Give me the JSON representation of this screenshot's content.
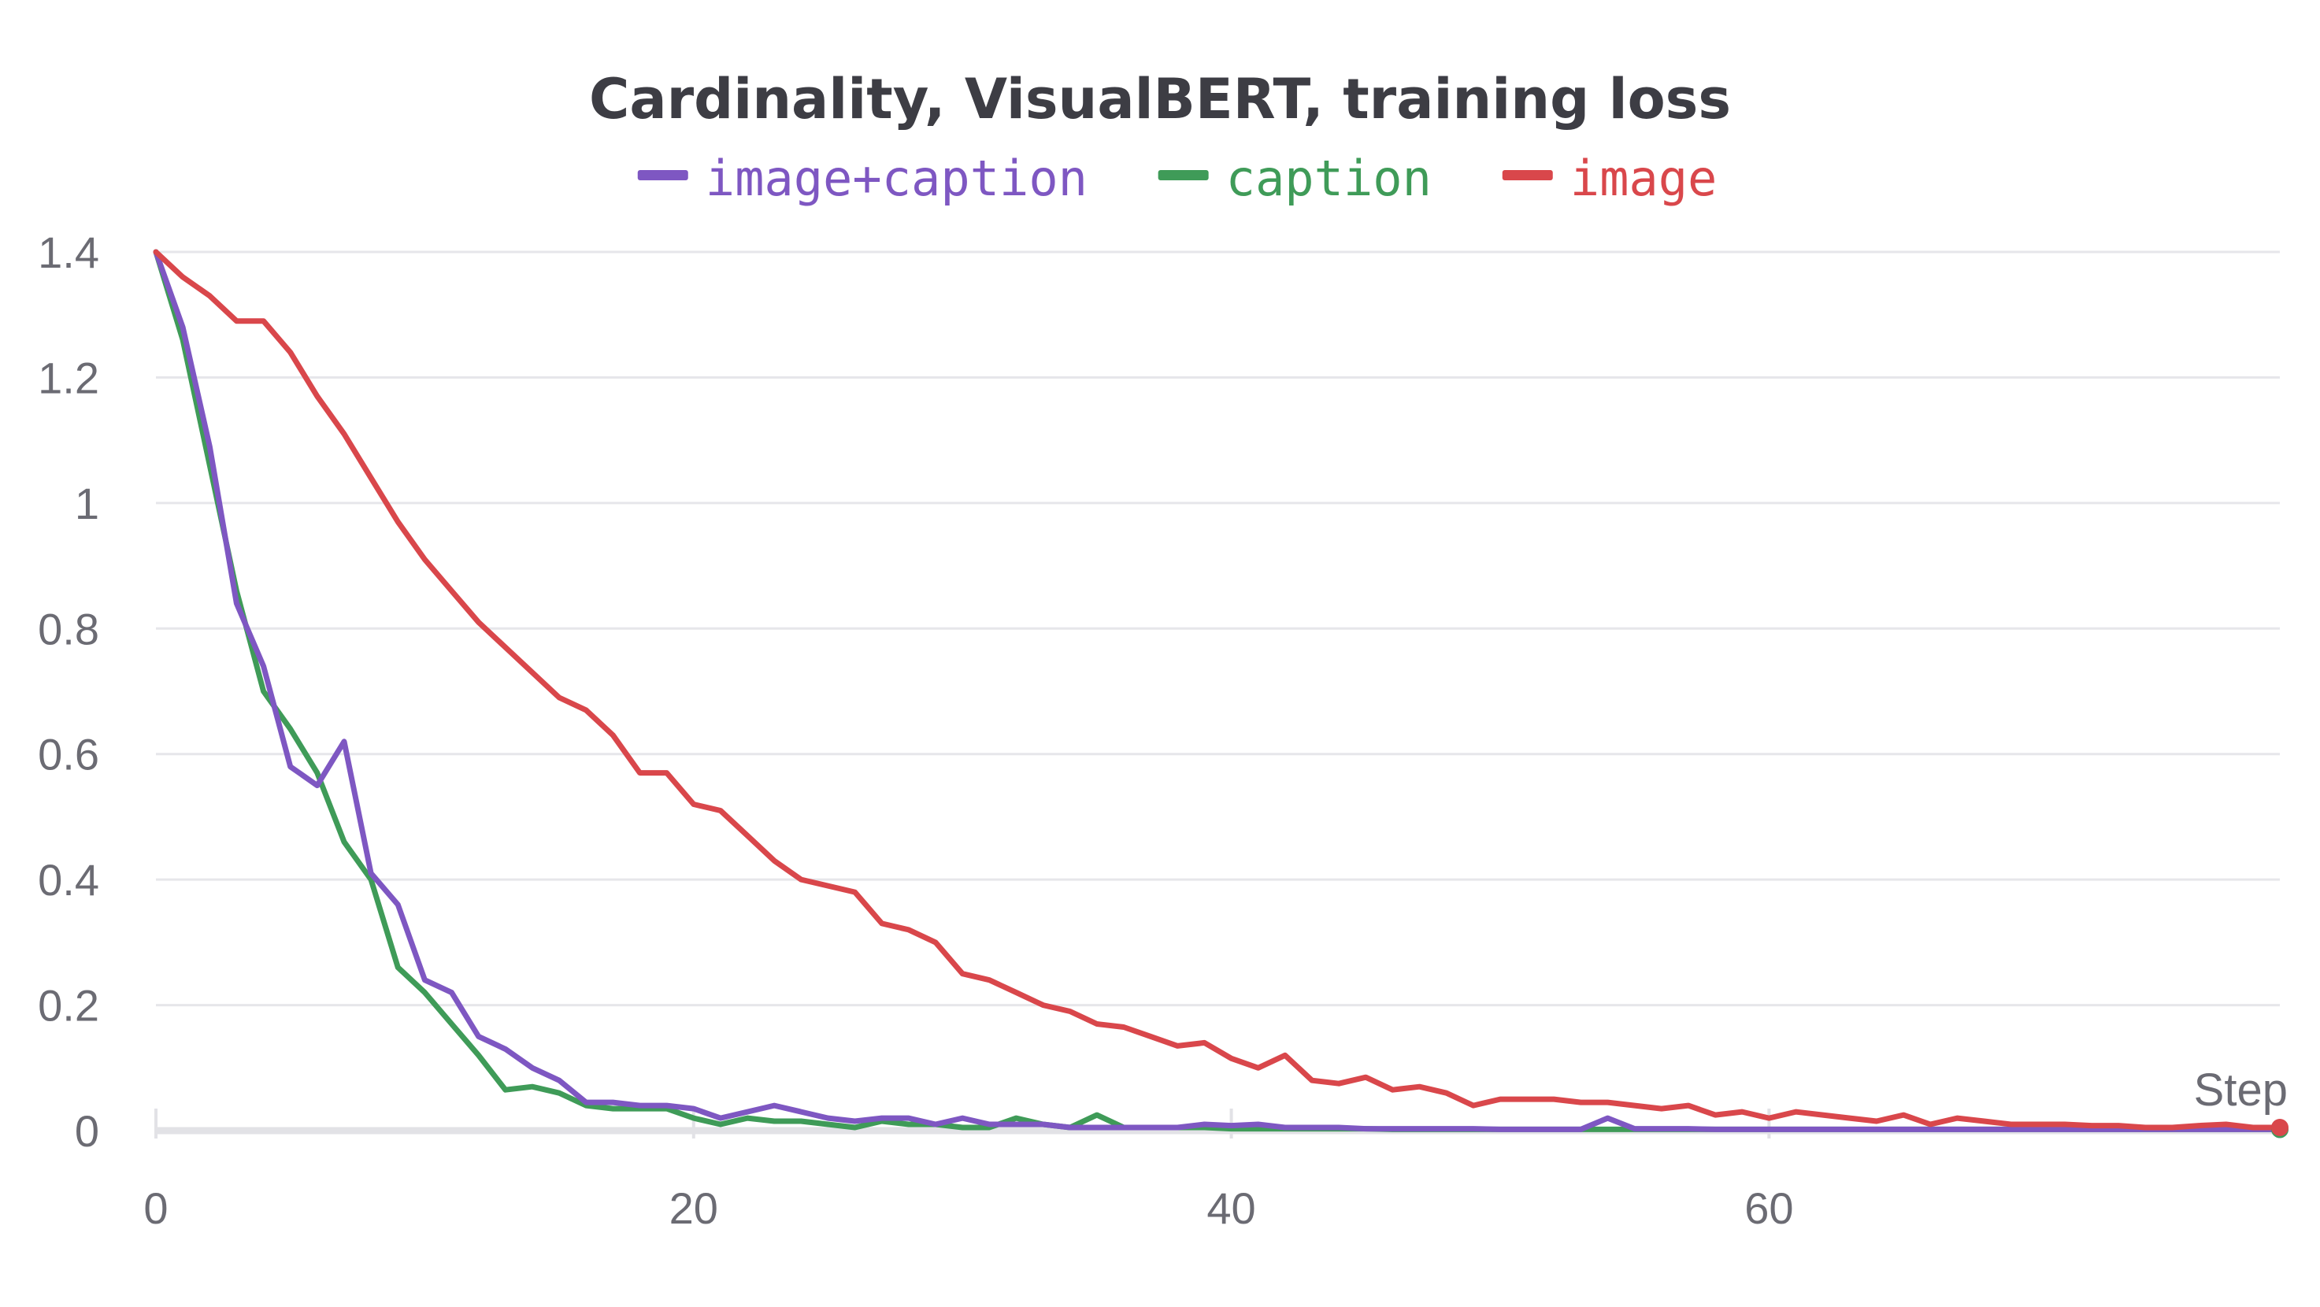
{
  "chart_data": {
    "type": "line",
    "title": "Cardinality, VisualBERT, training loss",
    "xlabel": "Step",
    "ylabel": "",
    "xlim": [
      0,
      79
    ],
    "ylim": [
      0,
      1.4
    ],
    "xticks": [
      0,
      20,
      40,
      60
    ],
    "yticks": [
      0,
      0.2,
      0.4,
      0.6,
      0.8,
      1,
      1.2,
      1.4
    ],
    "xtick_labels": [
      "0",
      "20",
      "40",
      "60"
    ],
    "ytick_labels": [
      "0",
      "0.2",
      "0.4",
      "0.6",
      "0.8",
      "1",
      "1.2",
      "1.4"
    ],
    "legend_position": "top-center",
    "series": [
      {
        "name": "image+caption",
        "color": "#7e57c2",
        "x": [
          0,
          1,
          2,
          3,
          4,
          5,
          6,
          7,
          8,
          9,
          10,
          11,
          12,
          13,
          14,
          15,
          16,
          17,
          18,
          19,
          20,
          21,
          22,
          23,
          24,
          25,
          26,
          27,
          28,
          29,
          30,
          31,
          32,
          33,
          34,
          35,
          36,
          37,
          38,
          39,
          40,
          41,
          42,
          43,
          44,
          45,
          46,
          47,
          48,
          49,
          50,
          51,
          52,
          53,
          54,
          55,
          56,
          57,
          58,
          59,
          60,
          61,
          62,
          63,
          64,
          65,
          66,
          67,
          68,
          69,
          70,
          71,
          72,
          73,
          74,
          75,
          76,
          77,
          78,
          79
        ],
        "values": [
          1.4,
          1.28,
          1.09,
          0.84,
          0.74,
          0.58,
          0.55,
          0.62,
          0.41,
          0.36,
          0.24,
          0.22,
          0.15,
          0.13,
          0.1,
          0.08,
          0.045,
          0.045,
          0.04,
          0.04,
          0.035,
          0.02,
          0.03,
          0.04,
          0.03,
          0.02,
          0.015,
          0.02,
          0.02,
          0.01,
          0.02,
          0.01,
          0.01,
          0.01,
          0.005,
          0.005,
          0.005,
          0.005,
          0.005,
          0.01,
          0.008,
          0.01,
          0.005,
          0.005,
          0.005,
          0.003,
          0.003,
          0.003,
          0.003,
          0.003,
          0.002,
          0.002,
          0.002,
          0.002,
          0.02,
          0.003,
          0.003,
          0.003,
          0.002,
          0.002,
          0.002,
          0.002,
          0.002,
          0.002,
          0.002,
          0.002,
          0.002,
          0.002,
          0.002,
          0.002,
          0.002,
          0.002,
          0.002,
          0.002,
          0.002,
          0.002,
          0.002,
          0.002,
          0.002,
          0.002
        ]
      },
      {
        "name": "caption",
        "color": "#3f9b58",
        "x": [
          0,
          1,
          2,
          3,
          4,
          5,
          6,
          7,
          8,
          9,
          10,
          11,
          12,
          13,
          14,
          15,
          16,
          17,
          18,
          19,
          20,
          21,
          22,
          23,
          24,
          25,
          26,
          27,
          28,
          29,
          30,
          31,
          32,
          33,
          34,
          35,
          36,
          37,
          38,
          39,
          40,
          41,
          42,
          43,
          44,
          45,
          46,
          47,
          48,
          49,
          50,
          51,
          52,
          53,
          54,
          55,
          56,
          57,
          58,
          59,
          60,
          61,
          62,
          63,
          64,
          65,
          66,
          67,
          68,
          69,
          70,
          71,
          72,
          73,
          74,
          75,
          76,
          77,
          78,
          79
        ],
        "values": [
          1.4,
          1.26,
          1.06,
          0.86,
          0.7,
          0.64,
          0.57,
          0.46,
          0.4,
          0.26,
          0.22,
          0.17,
          0.12,
          0.065,
          0.07,
          0.06,
          0.04,
          0.035,
          0.035,
          0.035,
          0.02,
          0.01,
          0.02,
          0.015,
          0.015,
          0.01,
          0.005,
          0.015,
          0.01,
          0.01,
          0.005,
          0.005,
          0.02,
          0.01,
          0.005,
          0.025,
          0.005,
          0.005,
          0.005,
          0.005,
          0.003,
          0.003,
          0.003,
          0.003,
          0.003,
          0.003,
          0.002,
          0.002,
          0.002,
          0.002,
          0.002,
          0.002,
          0.002,
          0.002,
          0.002,
          0.002,
          0.002,
          0.002,
          0.002,
          0.002,
          0.002,
          0.002,
          0.002,
          0.002,
          0.002,
          0.002,
          0.002,
          0.002,
          0.002,
          0.002,
          0.002,
          0.002,
          0.002,
          0.002,
          0.002,
          0.002,
          0.002,
          0.002,
          0.002,
          0.002
        ]
      },
      {
        "name": "image",
        "color": "#d9474b",
        "x": [
          0,
          1,
          2,
          3,
          4,
          5,
          6,
          7,
          8,
          9,
          10,
          11,
          12,
          13,
          14,
          15,
          16,
          17,
          18,
          19,
          20,
          21,
          22,
          23,
          24,
          25,
          26,
          27,
          28,
          29,
          30,
          31,
          32,
          33,
          34,
          35,
          36,
          37,
          38,
          39,
          40,
          41,
          42,
          43,
          44,
          45,
          46,
          47,
          48,
          49,
          50,
          51,
          52,
          53,
          54,
          55,
          56,
          57,
          58,
          59,
          60,
          61,
          62,
          63,
          64,
          65,
          66,
          67,
          68,
          69,
          70,
          71,
          72,
          73,
          74,
          75,
          76,
          77,
          78,
          79
        ],
        "values": [
          1.4,
          1.36,
          1.33,
          1.29,
          1.29,
          1.24,
          1.17,
          1.11,
          1.04,
          0.97,
          0.91,
          0.86,
          0.81,
          0.77,
          0.73,
          0.69,
          0.67,
          0.63,
          0.57,
          0.57,
          0.52,
          0.51,
          0.47,
          0.43,
          0.4,
          0.39,
          0.38,
          0.33,
          0.32,
          0.3,
          0.25,
          0.24,
          0.22,
          0.2,
          0.19,
          0.17,
          0.165,
          0.15,
          0.135,
          0.14,
          0.115,
          0.1,
          0.12,
          0.08,
          0.075,
          0.085,
          0.065,
          0.07,
          0.06,
          0.04,
          0.05,
          0.05,
          0.05,
          0.045,
          0.045,
          0.04,
          0.035,
          0.04,
          0.025,
          0.03,
          0.02,
          0.03,
          0.025,
          0.02,
          0.015,
          0.025,
          0.01,
          0.02,
          0.015,
          0.01,
          0.01,
          0.01,
          0.008,
          0.008,
          0.005,
          0.005,
          0.008,
          0.01,
          0.005,
          0.005
        ]
      }
    ]
  }
}
